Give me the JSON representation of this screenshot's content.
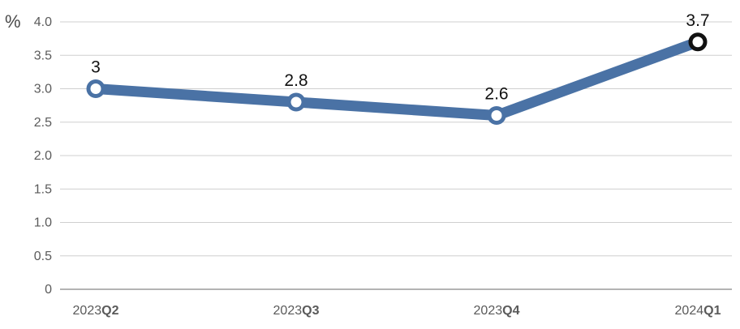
{
  "chart_data": {
    "type": "line",
    "ylabel": "%",
    "ylim": [
      0,
      4.0
    ],
    "yticks": [
      "0",
      "0.5",
      "1.0",
      "1.5",
      "2.0",
      "2.5",
      "3.0",
      "3.5",
      "4.0"
    ],
    "categories": [
      {
        "year": "2023",
        "quarter": "Q2"
      },
      {
        "year": "2023",
        "quarter": "Q3"
      },
      {
        "year": "2023",
        "quarter": "Q4"
      },
      {
        "year": "2024",
        "quarter": "Q1"
      }
    ],
    "series": [
      {
        "values": [
          3.0,
          2.8,
          2.6,
          3.7
        ],
        "labels": [
          "3",
          "2.8",
          "2.6",
          "3.7"
        ]
      }
    ],
    "highlight_last_point": true,
    "grid": true,
    "colors": {
      "line": "#4a72a5",
      "grid": "#cfcfcf",
      "axis": "#9a9a9a",
      "marker_fill": "#ffffff",
      "highlight_marker_stroke": "#111111"
    }
  }
}
